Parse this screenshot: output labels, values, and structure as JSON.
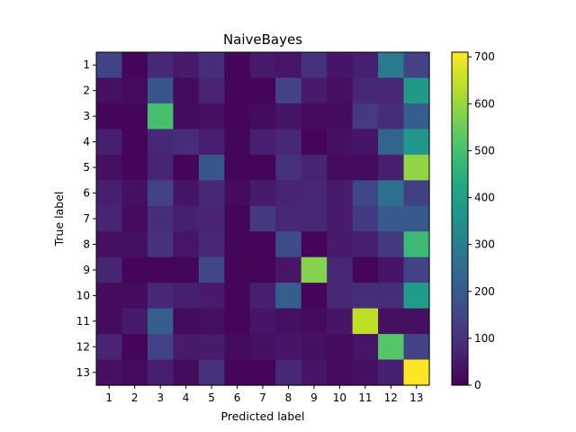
{
  "chart_data": {
    "type": "heatmap",
    "title": "NaiveBayes",
    "xlabel": "Predicted label",
    "ylabel": "True label",
    "x_categories": [
      "1",
      "2",
      "3",
      "4",
      "5",
      "6",
      "7",
      "8",
      "9",
      "10",
      "11",
      "12",
      "13"
    ],
    "y_categories": [
      "1",
      "2",
      "3",
      "4",
      "5",
      "6",
      "7",
      "8",
      "9",
      "10",
      "11",
      "12",
      "13"
    ],
    "values": [
      [
        140,
        10,
        80,
        50,
        90,
        10,
        50,
        40,
        100,
        40,
        60,
        290,
        140
      ],
      [
        30,
        20,
        190,
        20,
        70,
        10,
        10,
        140,
        50,
        30,
        80,
        80,
        380
      ],
      [
        10,
        10,
        500,
        20,
        30,
        10,
        20,
        40,
        20,
        20,
        120,
        90,
        210
      ],
      [
        60,
        10,
        80,
        90,
        60,
        10,
        60,
        80,
        10,
        30,
        40,
        230,
        370
      ],
      [
        30,
        10,
        70,
        10,
        190,
        10,
        10,
        100,
        70,
        20,
        20,
        60,
        590
      ],
      [
        60,
        30,
        140,
        40,
        80,
        20,
        50,
        70,
        80,
        50,
        150,
        260,
        130
      ],
      [
        70,
        20,
        90,
        60,
        70,
        10,
        120,
        80,
        80,
        50,
        120,
        200,
        200
      ],
      [
        30,
        30,
        100,
        40,
        80,
        10,
        10,
        160,
        10,
        50,
        60,
        120,
        480
      ],
      [
        70,
        10,
        10,
        10,
        150,
        10,
        10,
        40,
        580,
        80,
        10,
        40,
        140
      ],
      [
        20,
        20,
        80,
        60,
        50,
        10,
        60,
        210,
        10,
        80,
        90,
        90,
        390
      ],
      [
        20,
        50,
        210,
        20,
        30,
        10,
        40,
        30,
        20,
        40,
        640,
        30,
        30
      ],
      [
        70,
        10,
        140,
        50,
        50,
        20,
        30,
        40,
        30,
        20,
        40,
        520,
        140
      ],
      [
        30,
        20,
        60,
        20,
        100,
        10,
        10,
        80,
        40,
        20,
        30,
        60,
        710
      ]
    ],
    "colorbar": {
      "min": 0,
      "max": 710,
      "ticks": [
        0,
        100,
        200,
        300,
        400,
        500,
        600,
        700
      ]
    },
    "colormap": "viridis",
    "grid": false
  }
}
